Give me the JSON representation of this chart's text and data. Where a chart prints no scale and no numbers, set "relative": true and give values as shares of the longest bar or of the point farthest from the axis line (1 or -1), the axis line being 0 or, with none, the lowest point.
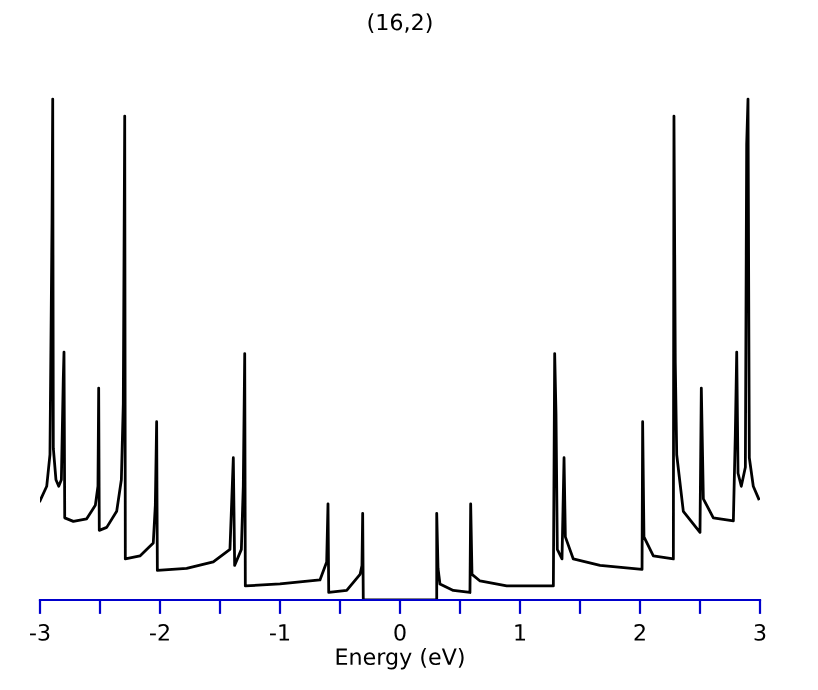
{
  "chart_data": {
    "type": "line",
    "title": "(16,2)",
    "xlabel": "Energy (eV)",
    "relative": true,
    "xlim": [
      -3,
      3
    ],
    "xticks": [
      -3,
      {
        "value": -2.5,
        "label": null
      },
      -2,
      {
        "value": -1.5,
        "label": null
      },
      -1,
      {
        "value": -0.5,
        "label": null
      },
      0,
      {
        "value": 0.5,
        "label": null
      },
      1,
      {
        "value": 1.5,
        "label": null
      },
      2,
      {
        "value": 2.5,
        "label": null
      },
      3
    ],
    "grid": false,
    "marker": "none",
    "line_style": "solid",
    "tick_labels": "x",
    "series": [
      {
        "color": "#000000",
        "x": [
          -3.0,
          -2.944,
          -2.917,
          -2.9,
          -2.894,
          -2.889,
          -2.867,
          -2.844,
          -2.822,
          -2.806,
          -2.8,
          -2.794,
          -2.722,
          -2.611,
          -2.539,
          -2.517,
          -2.511,
          -2.506,
          -2.444,
          -2.361,
          -2.322,
          -2.306,
          -2.294,
          -2.289,
          -2.167,
          -2.056,
          -2.039,
          -2.028,
          -2.022,
          -1.778,
          -1.556,
          -1.417,
          -1.389,
          -1.378,
          -1.322,
          -1.306,
          -1.294,
          -1.289,
          -1.0,
          -0.667,
          -0.611,
          -0.6,
          -0.594,
          -0.444,
          -0.333,
          -0.317,
          -0.311,
          -0.306,
          0.306,
          0.306,
          0.317,
          0.333,
          0.444,
          0.583,
          0.589,
          0.6,
          0.667,
          0.889,
          1.278,
          1.289,
          1.3,
          1.311,
          1.35,
          1.367,
          1.378,
          1.444,
          1.667,
          2.017,
          2.022,
          2.033,
          2.111,
          2.278,
          2.283,
          2.294,
          2.306,
          2.361,
          2.5,
          2.511,
          2.528,
          2.611,
          2.778,
          2.794,
          2.806,
          2.817,
          2.844,
          2.878,
          2.889,
          2.9,
          2.911,
          2.944,
          2.989
        ],
        "values": [
          0.198,
          0.227,
          0.29,
          0.751,
          1.0,
          0.303,
          0.24,
          0.227,
          0.24,
          0.442,
          0.495,
          0.164,
          0.157,
          0.162,
          0.189,
          0.227,
          0.423,
          0.139,
          0.145,
          0.177,
          0.24,
          0.391,
          0.966,
          0.082,
          0.088,
          0.114,
          0.189,
          0.356,
          0.059,
          0.063,
          0.076,
          0.101,
          0.284,
          0.069,
          0.101,
          0.227,
          0.492,
          0.028,
          0.032,
          0.04,
          0.076,
          0.192,
          0.015,
          0.019,
          0.051,
          0.069,
          0.173,
          0.0,
          0.0,
          0.173,
          0.063,
          0.032,
          0.019,
          0.015,
          0.192,
          0.051,
          0.038,
          0.028,
          0.028,
          0.492,
          0.372,
          0.101,
          0.082,
          0.284,
          0.126,
          0.082,
          0.069,
          0.061,
          0.356,
          0.126,
          0.088,
          0.082,
          0.966,
          0.473,
          0.29,
          0.177,
          0.135,
          0.423,
          0.202,
          0.164,
          0.158,
          0.328,
          0.495,
          0.253,
          0.227,
          0.265,
          0.909,
          1.0,
          0.284,
          0.227,
          0.202
        ]
      }
    ]
  }
}
